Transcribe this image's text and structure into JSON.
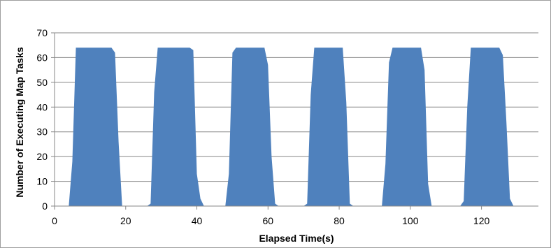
{
  "chart_data": {
    "type": "area",
    "title": "",
    "xlabel": "Elapsed Time(s)",
    "ylabel": "Number of Executing Map Tasks",
    "xlim": [
      0,
      136
    ],
    "ylim": [
      0,
      70
    ],
    "xticks": [
      0,
      20,
      40,
      60,
      80,
      100,
      120
    ],
    "yticks": [
      0,
      10,
      20,
      30,
      40,
      50,
      60,
      70
    ],
    "grid": {
      "horizontal": true,
      "vertical": false
    },
    "legend": "none",
    "series": [
      {
        "color": "#4f81bd",
        "points": [
          [
            4,
            0
          ],
          [
            5,
            18
          ],
          [
            6,
            64
          ],
          [
            16,
            64
          ],
          [
            17,
            62
          ],
          [
            18,
            26
          ],
          [
            19,
            0
          ],
          [
            26,
            0
          ],
          [
            27,
            1
          ],
          [
            28,
            46
          ],
          [
            29,
            64
          ],
          [
            38,
            64
          ],
          [
            39,
            63
          ],
          [
            40,
            13
          ],
          [
            41,
            3
          ],
          [
            42,
            0
          ],
          [
            48,
            0
          ],
          [
            49,
            13
          ],
          [
            50,
            62
          ],
          [
            51,
            64
          ],
          [
            59,
            64
          ],
          [
            60,
            57
          ],
          [
            61,
            20
          ],
          [
            62,
            1
          ],
          [
            63,
            0
          ],
          [
            70,
            0
          ],
          [
            71,
            1
          ],
          [
            72,
            45
          ],
          [
            73,
            64
          ],
          [
            81,
            64
          ],
          [
            82,
            42
          ],
          [
            83,
            1
          ],
          [
            84,
            0
          ],
          [
            92,
            0
          ],
          [
            93,
            17
          ],
          [
            94,
            58
          ],
          [
            95,
            64
          ],
          [
            103,
            64
          ],
          [
            104,
            55
          ],
          [
            105,
            9
          ],
          [
            106,
            0
          ],
          [
            114,
            0
          ],
          [
            115,
            2
          ],
          [
            116,
            40
          ],
          [
            117,
            64
          ],
          [
            125,
            64
          ],
          [
            126,
            61
          ],
          [
            127,
            34
          ],
          [
            128,
            3
          ],
          [
            129,
            0
          ]
        ]
      }
    ]
  }
}
